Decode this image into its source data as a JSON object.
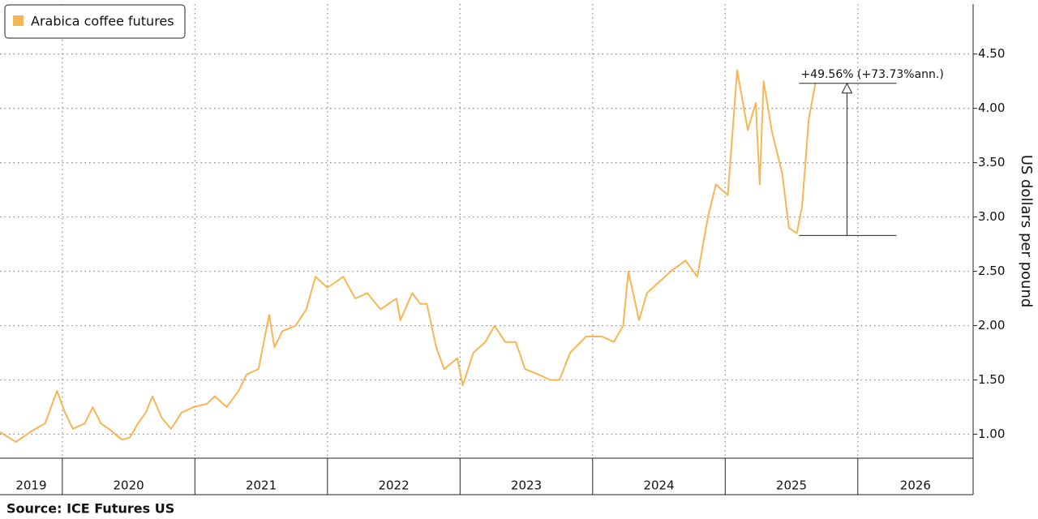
{
  "chart_data": {
    "type": "line",
    "y_axis_label": "US dollars per pound",
    "source": "Source: ICE Futures US",
    "legend": "top-left",
    "grid": true,
    "series": [
      {
        "name": "Arabica coffee futures",
        "color": "#f6b654",
        "x": [
          2019.53,
          2019.65,
          2019.77,
          2019.87,
          2019.96,
          2020.02,
          2020.08,
          2020.17,
          2020.23,
          2020.29,
          2020.35,
          2020.45,
          2020.51,
          2020.57,
          2020.63,
          2020.68,
          2020.75,
          2020.82,
          2020.9,
          2020.99,
          2021.09,
          2021.15,
          2021.24,
          2021.33,
          2021.39,
          2021.48,
          2021.56,
          2021.6,
          2021.66,
          2021.76,
          2021.84,
          2021.91,
          2022.0,
          2022.12,
          2022.21,
          2022.3,
          2022.4,
          2022.52,
          2022.55,
          2022.64,
          2022.7,
          2022.75,
          2022.82,
          2022.88,
          2022.98,
          2023.02,
          2023.1,
          2023.19,
          2023.26,
          2023.34,
          2023.42,
          2023.49,
          2023.59,
          2023.68,
          2023.75,
          2023.83,
          2023.95,
          2024.07,
          2024.16,
          2024.23,
          2024.27,
          2024.35,
          2024.41,
          2024.5,
          2024.59,
          2024.7,
          2024.79,
          2024.87,
          2024.93,
          2025.02,
          2025.09,
          2025.17,
          2025.23,
          2025.26,
          2025.29,
          2025.35,
          2025.43,
          2025.48,
          2025.54,
          2025.58,
          2025.63,
          2025.68
        ],
        "values": [
          1.02,
          0.93,
          1.03,
          1.1,
          1.4,
          1.2,
          1.05,
          1.1,
          1.25,
          1.1,
          1.05,
          0.95,
          0.97,
          1.1,
          1.2,
          1.35,
          1.15,
          1.05,
          1.2,
          1.25,
          1.28,
          1.35,
          1.25,
          1.4,
          1.55,
          1.6,
          2.1,
          1.8,
          1.95,
          2.0,
          2.15,
          2.45,
          2.35,
          2.45,
          2.25,
          2.3,
          2.15,
          2.25,
          2.05,
          2.3,
          2.2,
          2.2,
          1.8,
          1.6,
          1.7,
          1.45,
          1.75,
          1.85,
          2.0,
          1.85,
          1.85,
          1.6,
          1.55,
          1.5,
          1.5,
          1.75,
          1.9,
          1.9,
          1.85,
          2.0,
          2.5,
          2.05,
          2.3,
          2.4,
          2.5,
          2.6,
          2.45,
          3.0,
          3.3,
          3.2,
          4.35,
          3.8,
          4.05,
          3.3,
          4.25,
          3.8,
          3.4,
          2.9,
          2.85,
          3.1,
          3.9,
          4.23
        ]
      }
    ],
    "annotation": {
      "text": "+49.56% (+73.73%ann.)",
      "from": 2.83,
      "to": 4.23
    },
    "xlim": [
      2019.53,
      2026.87
    ],
    "xticks": [
      2019,
      2020,
      2021,
      2022,
      2023,
      2024,
      2025,
      2026
    ],
    "ylim": [
      0.78,
      4.96
    ],
    "yticks": [
      {
        "value": 1,
        "label": "1.00"
      },
      {
        "value": 1.5,
        "label": "1.50"
      },
      {
        "value": 2,
        "label": "2.00"
      },
      {
        "value": 2.5,
        "label": "2.50"
      },
      {
        "value": 3,
        "label": "3.00"
      },
      {
        "value": 3.5,
        "label": "3.50"
      },
      {
        "value": 4,
        "label": "4.00"
      },
      {
        "value": 4.5,
        "label": "4.50"
      }
    ]
  }
}
